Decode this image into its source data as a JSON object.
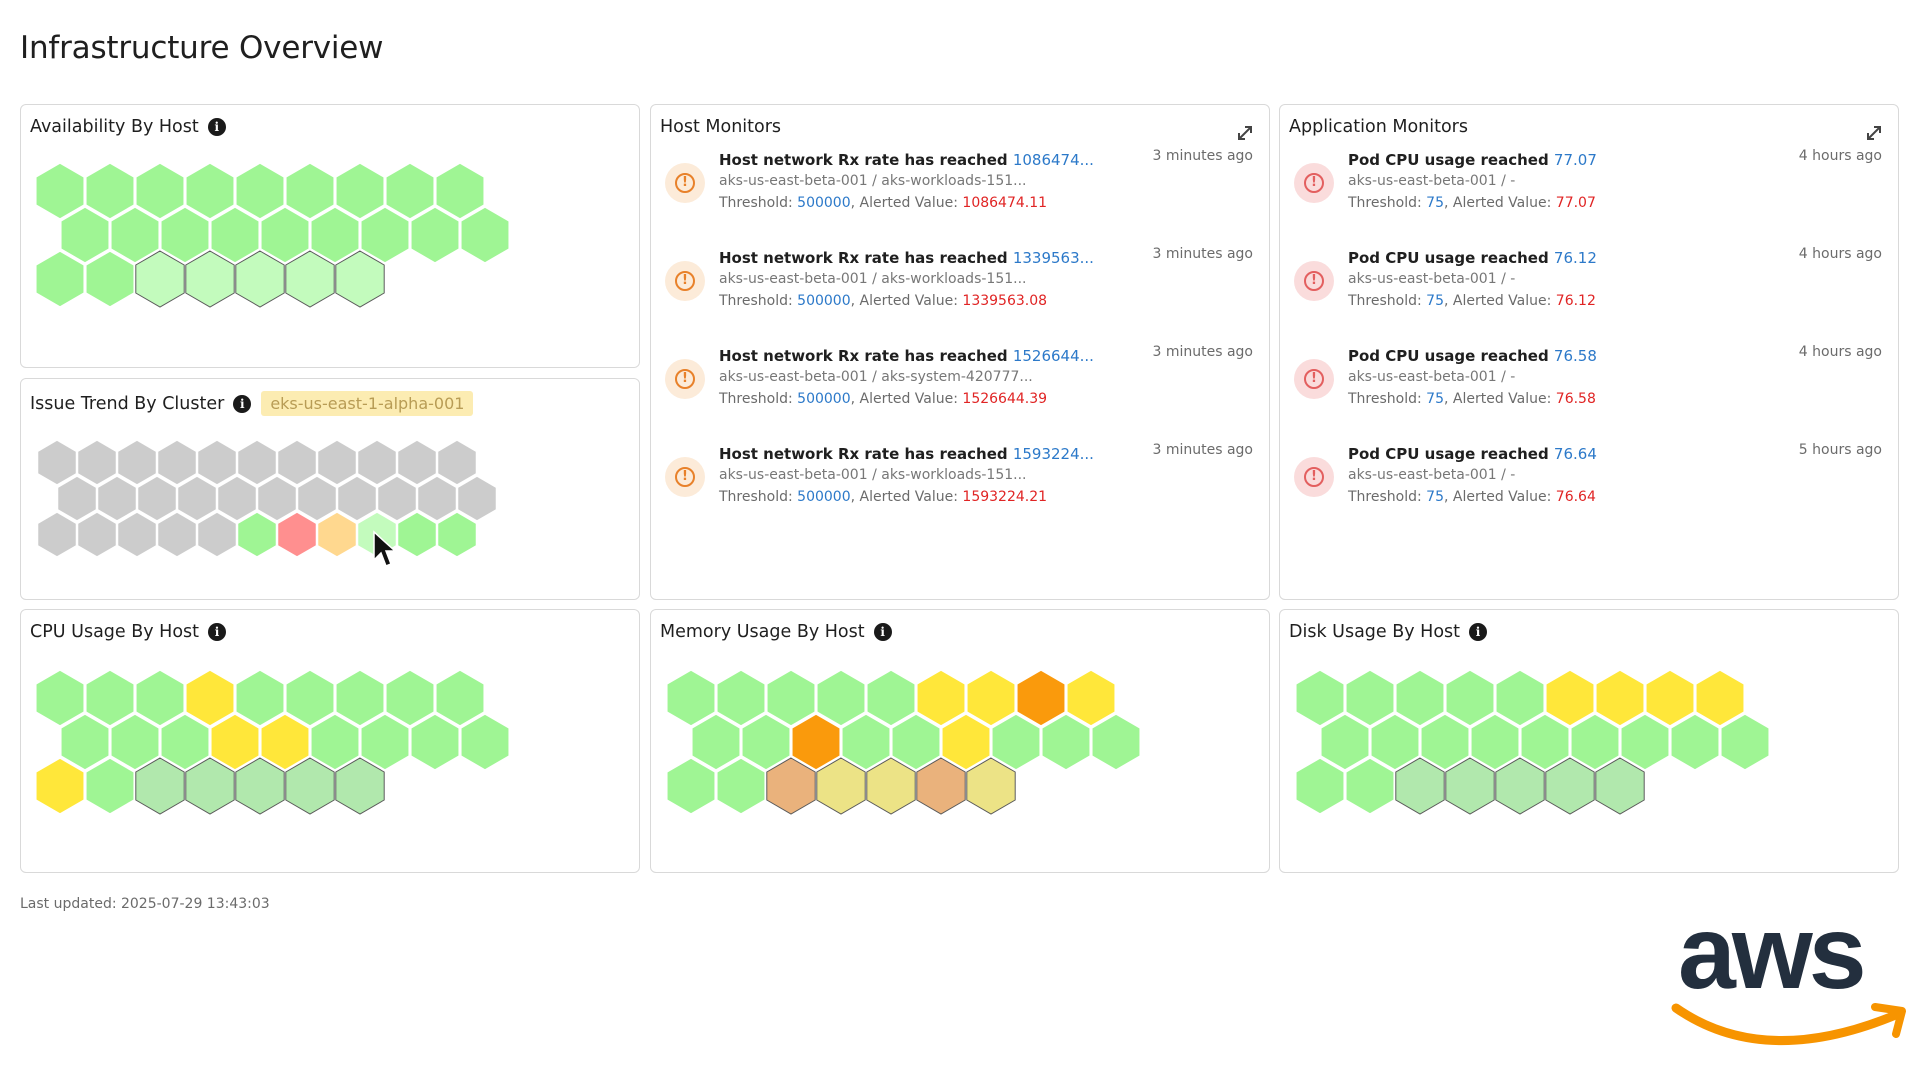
{
  "page": {
    "title": "Infrastructure Overview",
    "last_updated": "Last updated: 2025-07-29 13:43:03"
  },
  "colors": {
    "green": "#9ff594",
    "light_green": "#c3fbbd",
    "pale_green": "#b1e8ad",
    "gray": "#cccccc",
    "red": "#ff8f8f",
    "peach": "#ffd88f",
    "yellow": "#ffe73a",
    "orange": "#fa9a0c",
    "tan": "#eab27c",
    "khaki": "#ece386"
  },
  "availability": {
    "title": "Availability By Host",
    "info_icon": "info-icon",
    "hexes": [
      "green",
      "green",
      "green",
      "green",
      "green",
      "green",
      "green",
      "green",
      "green",
      "green",
      "green",
      "green",
      "green",
      "green",
      "green",
      "green",
      "green",
      "green",
      "green",
      "green",
      "light_green",
      "light_green",
      "light_green",
      "light_green",
      "light_green"
    ]
  },
  "issue_trend": {
    "title": "Issue Trend By Cluster",
    "info_icon": "info-icon",
    "cluster": "eks-us-east-1-alpha-001",
    "hexes": [
      "gray",
      "gray",
      "gray",
      "gray",
      "gray",
      "gray",
      "gray",
      "gray",
      "gray",
      "gray",
      "gray",
      "gray",
      "gray",
      "gray",
      "gray",
      "gray",
      "gray",
      "gray",
      "gray",
      "gray",
      "gray",
      "gray",
      "gray",
      "gray",
      "gray",
      "gray",
      "gray",
      "green",
      "red",
      "peach",
      "light_green",
      "green",
      "green"
    ]
  },
  "host_monitors": {
    "title": "Host Monitors",
    "expand_icon": "expand-icon",
    "items": [
      {
        "text": "Host network Rx rate has reached ",
        "value": "1086474...",
        "time": "3 minutes ago",
        "sub": "aks-us-east-beta-001 / aks-workloads-151...",
        "threshold_label": "Threshold: ",
        "threshold": "500000",
        "alerted_label": ", Alerted Value: ",
        "alerted": "1086474.11"
      },
      {
        "text": "Host network Rx rate has reached ",
        "value": "1339563...",
        "time": "3 minutes ago",
        "sub": "aks-us-east-beta-001 / aks-workloads-151...",
        "threshold_label": "Threshold: ",
        "threshold": "500000",
        "alerted_label": ", Alerted Value: ",
        "alerted": "1339563.08"
      },
      {
        "text": "Host network Rx rate has reached ",
        "value": "1526644...",
        "time": "3 minutes ago",
        "sub": "aks-us-east-beta-001 / aks-system-420777...",
        "threshold_label": "Threshold: ",
        "threshold": "500000",
        "alerted_label": ", Alerted Value: ",
        "alerted": "1526644.39"
      },
      {
        "text": "Host network Rx rate has reached ",
        "value": "1593224...",
        "time": "3 minutes ago",
        "sub": "aks-us-east-beta-001 / aks-workloads-151...",
        "threshold_label": "Threshold: ",
        "threshold": "500000",
        "alerted_label": ", Alerted Value: ",
        "alerted": "1593224.21"
      }
    ]
  },
  "app_monitors": {
    "title": "Application Monitors",
    "expand_icon": "expand-icon",
    "items": [
      {
        "text": "Pod CPU usage reached ",
        "value": "77.07",
        "time": "4 hours ago",
        "sub": "aks-us-east-beta-001 / -",
        "threshold_label": "Threshold: ",
        "threshold": "75",
        "alerted_label": ", Alerted Value: ",
        "alerted": "77.07"
      },
      {
        "text": "Pod CPU usage reached ",
        "value": "76.12",
        "time": "4 hours ago",
        "sub": "aks-us-east-beta-001 / -",
        "threshold_label": "Threshold: ",
        "threshold": "75",
        "alerted_label": ", Alerted Value: ",
        "alerted": "76.12"
      },
      {
        "text": "Pod CPU usage reached ",
        "value": "76.58",
        "time": "4 hours ago",
        "sub": "aks-us-east-beta-001 / -",
        "threshold_label": "Threshold: ",
        "threshold": "75",
        "alerted_label": ", Alerted Value: ",
        "alerted": "76.58"
      },
      {
        "text": "Pod CPU usage reached ",
        "value": "76.64",
        "time": "5 hours ago",
        "sub": "aks-us-east-beta-001 / -",
        "threshold_label": "Threshold: ",
        "threshold": "75",
        "alerted_label": ", Alerted Value: ",
        "alerted": "76.64"
      }
    ]
  },
  "cpu": {
    "title": "CPU Usage By Host",
    "info_icon": "info-icon",
    "hexes": [
      "green",
      "green",
      "green",
      "yellow",
      "green",
      "green",
      "green",
      "green",
      "green",
      "green",
      "green",
      "green",
      "yellow",
      "yellow",
      "green",
      "green",
      "green",
      "green",
      "yellow",
      "green",
      "pale_green",
      "pale_green",
      "pale_green",
      "pale_green",
      "pale_green"
    ]
  },
  "memory": {
    "title": "Memory Usage By Host",
    "info_icon": "info-icon",
    "hexes": [
      "green",
      "green",
      "green",
      "green",
      "green",
      "yellow",
      "yellow",
      "orange",
      "yellow",
      "green",
      "green",
      "orange",
      "green",
      "green",
      "yellow",
      "green",
      "green",
      "green",
      "green",
      "green",
      "tan",
      "khaki",
      "khaki",
      "tan",
      "khaki"
    ]
  },
  "disk": {
    "title": "Disk Usage By Host",
    "info_icon": "info-icon",
    "hexes": [
      "green",
      "green",
      "green",
      "green",
      "green",
      "yellow",
      "yellow",
      "yellow",
      "yellow",
      "green",
      "green",
      "green",
      "green",
      "green",
      "green",
      "green",
      "green",
      "green",
      "green",
      "green",
      "pale_green",
      "pale_green",
      "pale_green",
      "pale_green",
      "pale_green"
    ]
  },
  "logo": {
    "text": "aws"
  },
  "cursor": "mouse-pointer-icon"
}
